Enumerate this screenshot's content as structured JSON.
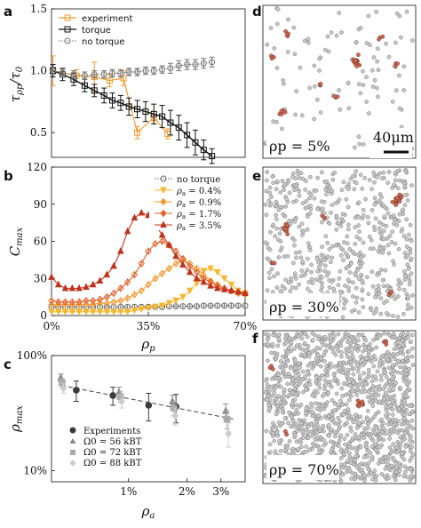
{
  "chart_data": [
    {
      "panel": "a",
      "type": "line",
      "ylabel": "τ_ρp / τ_0",
      "ylim": [
        0.3,
        1.5
      ],
      "xlim": [
        0,
        0.7
      ],
      "yticks": [
        {
          "v": 1.5,
          "label": "1.5"
        },
        {
          "v": 1.0,
          "label": "1.0"
        },
        {
          "v": 0.5,
          "label": "0.5"
        }
      ],
      "legend": [
        "experiment",
        "torque",
        "no torque"
      ],
      "series": [
        {
          "name": "experiment",
          "color": "#f39a2b",
          "marker": "s",
          "x": [
            0.005,
            0.09,
            0.155,
            0.21,
            0.26,
            0.31,
            0.37,
            0.42
          ],
          "y": [
            1.0,
            0.96,
            0.95,
            0.92,
            0.94,
            0.5,
            0.62,
            0.49
          ],
          "err": [
            0.12,
            0.05,
            0.12,
            0.05,
            0.06,
            0.05,
            0.05,
            0.04
          ]
        },
        {
          "name": "torque",
          "color": "#111111",
          "marker": "s",
          "x": [
            0.005,
            0.04,
            0.08,
            0.12,
            0.155,
            0.19,
            0.22,
            0.25,
            0.28,
            0.31,
            0.34,
            0.37,
            0.4,
            0.43,
            0.46,
            0.49,
            0.52,
            0.55,
            0.58
          ],
          "y": [
            1.0,
            0.97,
            0.93,
            0.88,
            0.84,
            0.8,
            0.76,
            0.74,
            0.71,
            0.69,
            0.67,
            0.65,
            0.63,
            0.58,
            0.54,
            0.48,
            0.42,
            0.36,
            0.31
          ],
          "err": [
            0.05,
            0.05,
            0.05,
            0.05,
            0.05,
            0.06,
            0.06,
            0.06,
            0.07,
            0.07,
            0.08,
            0.08,
            0.09,
            0.1,
            0.1,
            0.1,
            0.1,
            0.08,
            0.06
          ]
        },
        {
          "name": "no torque",
          "color": "#777777",
          "marker": "o",
          "x": [
            0.005,
            0.04,
            0.08,
            0.12,
            0.155,
            0.19,
            0.22,
            0.25,
            0.28,
            0.31,
            0.34,
            0.37,
            0.4,
            0.43,
            0.46,
            0.49,
            0.52,
            0.55,
            0.58
          ],
          "y": [
            1.0,
            0.98,
            0.97,
            0.96,
            0.97,
            0.97,
            0.98,
            0.98,
            0.99,
            0.99,
            1.0,
            1.0,
            1.01,
            1.02,
            1.04,
            1.05,
            1.05,
            1.06,
            1.07
          ],
          "err": [
            0.03,
            0.03,
            0.03,
            0.03,
            0.03,
            0.03,
            0.03,
            0.03,
            0.03,
            0.03,
            0.03,
            0.03,
            0.03,
            0.04,
            0.04,
            0.04,
            0.04,
            0.04,
            0.04
          ]
        }
      ]
    },
    {
      "panel": "b",
      "type": "line",
      "ylabel": "C_max",
      "xlabel": "ρ_p",
      "xlim": [
        0,
        0.7
      ],
      "ylim": [
        0,
        120
      ],
      "yticks": [
        {
          "v": 120,
          "label": "120"
        },
        {
          "v": 90,
          "label": "90"
        },
        {
          "v": 60,
          "label": "60"
        },
        {
          "v": 30,
          "label": "30"
        },
        {
          "v": 0,
          "label": "0"
        }
      ],
      "xticks": [
        {
          "v": 0,
          "label": "0%"
        },
        {
          "v": 0.35,
          "label": "35%"
        },
        {
          "v": 0.7,
          "label": "70%"
        }
      ],
      "series": [
        {
          "name": "no torque",
          "color": "#666666",
          "marker": "o",
          "x": [
            0,
            0.025,
            0.05,
            0.075,
            0.1,
            0.125,
            0.15,
            0.175,
            0.2,
            0.225,
            0.25,
            0.275,
            0.3,
            0.325,
            0.35,
            0.375,
            0.4,
            0.425,
            0.45,
            0.475,
            0.5,
            0.525,
            0.55,
            0.575,
            0.6,
            0.625,
            0.65,
            0.675,
            0.7
          ],
          "y": [
            7,
            7,
            7,
            7,
            7,
            7,
            7,
            7,
            7,
            7,
            7,
            7,
            7,
            7,
            7,
            7,
            7,
            7.5,
            7.5,
            7.5,
            7.5,
            7.5,
            8,
            8,
            8,
            8,
            8,
            8,
            8
          ]
        },
        {
          "name": "ρ_a = 0.4%",
          "color": "#f7b731",
          "marker": "v",
          "x": [
            0,
            0.025,
            0.05,
            0.075,
            0.1,
            0.125,
            0.15,
            0.175,
            0.2,
            0.225,
            0.25,
            0.275,
            0.3,
            0.325,
            0.35,
            0.375,
            0.4,
            0.425,
            0.45,
            0.475,
            0.5,
            0.525,
            0.55,
            0.575,
            0.6,
            0.625,
            0.65,
            0.675,
            0.7
          ],
          "y": [
            3,
            3,
            3,
            3,
            3,
            3,
            3,
            3,
            3,
            3,
            3,
            3,
            4,
            5,
            6,
            7,
            8,
            10,
            12,
            15,
            20,
            26,
            36,
            38,
            35,
            30,
            25,
            20,
            18
          ]
        },
        {
          "name": "ρ_a = 0.9%",
          "color": "#f29a2e",
          "marker": "d",
          "x": [
            0,
            0.025,
            0.05,
            0.075,
            0.1,
            0.125,
            0.15,
            0.175,
            0.2,
            0.225,
            0.25,
            0.275,
            0.3,
            0.325,
            0.35,
            0.375,
            0.4,
            0.425,
            0.45,
            0.475,
            0.5,
            0.525,
            0.55,
            0.575,
            0.6,
            0.625,
            0.65,
            0.675,
            0.7
          ],
          "y": [
            9,
            9,
            9,
            9,
            9,
            9,
            9,
            10,
            10,
            11,
            12,
            14,
            17,
            20,
            25,
            30,
            34,
            38,
            42,
            45,
            42,
            38,
            33,
            28,
            25,
            22,
            20,
            18,
            17
          ]
        },
        {
          "name": "ρ_a = 1.7%",
          "color": "#e2632b",
          "marker": "D",
          "x": [
            0,
            0.025,
            0.05,
            0.075,
            0.1,
            0.125,
            0.15,
            0.175,
            0.2,
            0.225,
            0.25,
            0.275,
            0.3,
            0.325,
            0.35,
            0.375,
            0.4,
            0.425,
            0.45,
            0.475,
            0.5,
            0.525,
            0.55,
            0.575,
            0.6,
            0.625,
            0.65,
            0.675,
            0.7
          ],
          "y": [
            12,
            11,
            11,
            11,
            11,
            12,
            12,
            13,
            15,
            18,
            22,
            27,
            33,
            42,
            52,
            58,
            60,
            57,
            52,
            46,
            40,
            35,
            30,
            27,
            24,
            22,
            20,
            19,
            18
          ]
        },
        {
          "name": "ρ_a = 3.5%",
          "color": "#c0331d",
          "marker": "^",
          "x": [
            0,
            0.025,
            0.05,
            0.075,
            0.1,
            0.125,
            0.15,
            0.175,
            0.2,
            0.225,
            0.25,
            0.275,
            0.3,
            0.325,
            0.35,
            0.375,
            0.4,
            0.425,
            0.45,
            0.475,
            0.5,
            0.525,
            0.55,
            0.575,
            0.6,
            0.625,
            0.65,
            0.675,
            0.7
          ],
          "y": [
            31,
            25,
            22,
            22,
            22,
            23,
            25,
            28,
            33,
            40,
            52,
            68,
            79,
            83,
            81,
            74,
            65,
            57,
            48,
            41,
            35,
            30,
            27,
            24,
            22,
            21,
            20,
            19,
            18
          ]
        }
      ]
    },
    {
      "panel": "c",
      "type": "scatter",
      "ylabel": "ρ_max",
      "xlabel": "ρ_a",
      "xscale": "log",
      "yscale": "log",
      "xlim": [
        0.004,
        0.04
      ],
      "ylim": [
        0.08,
        1.0
      ],
      "yticks": [
        {
          "v": 1.0,
          "label": "100%"
        },
        {
          "v": 0.1,
          "label": "10%"
        }
      ],
      "xticks": [
        {
          "v": 0.01,
          "label": "1%"
        },
        {
          "v": 0.02,
          "label": "2%"
        },
        {
          "v": 0.03,
          "label": "3%"
        }
      ],
      "fit_line": {
        "x": [
          0.0045,
          0.035
        ],
        "y": [
          0.55,
          0.28
        ]
      },
      "series": [
        {
          "name": "Experiments",
          "color": "#3a3a3a",
          "marker": "o",
          "x": [
            0.0055,
            0.0085,
            0.013,
            0.018
          ],
          "y": [
            0.5,
            0.45,
            0.37,
            0.36
          ],
          "err": [
            0.1,
            0.08,
            0.1,
            0.1
          ]
        },
        {
          "name": "Ω0 = 56 kBT",
          "color": "#888888",
          "marker": "^",
          "x": [
            0.0045,
            0.009,
            0.017,
            0.032
          ],
          "y": [
            0.64,
            0.48,
            0.4,
            0.33
          ],
          "err": [
            0.05,
            0.05,
            0.05,
            0.05
          ]
        },
        {
          "name": "Ω0 = 72 kBT",
          "color": "#aaaaaa",
          "marker": "s",
          "x": [
            0.0045,
            0.009,
            0.017,
            0.032
          ],
          "y": [
            0.58,
            0.44,
            0.35,
            0.28
          ],
          "err": [
            0.05,
            0.05,
            0.05,
            0.05
          ]
        },
        {
          "name": "Ω0 = 88 kBT",
          "color": "#cccccc",
          "marker": "D",
          "x": [
            0.0045,
            0.009,
            0.017,
            0.032
          ],
          "y": [
            0.52,
            0.4,
            0.3,
            0.21
          ],
          "err": [
            0.05,
            0.05,
            0.05,
            0.05
          ]
        }
      ]
    }
  ],
  "panels": {
    "a": "a",
    "b": "b",
    "c": "c",
    "d": "d",
    "e": "e",
    "f": "f"
  },
  "snapshots": {
    "d_label": "ρp = 5%",
    "e_label": "ρp = 30%",
    "f_label": "ρp = 70%",
    "scalebar": "40μm"
  }
}
